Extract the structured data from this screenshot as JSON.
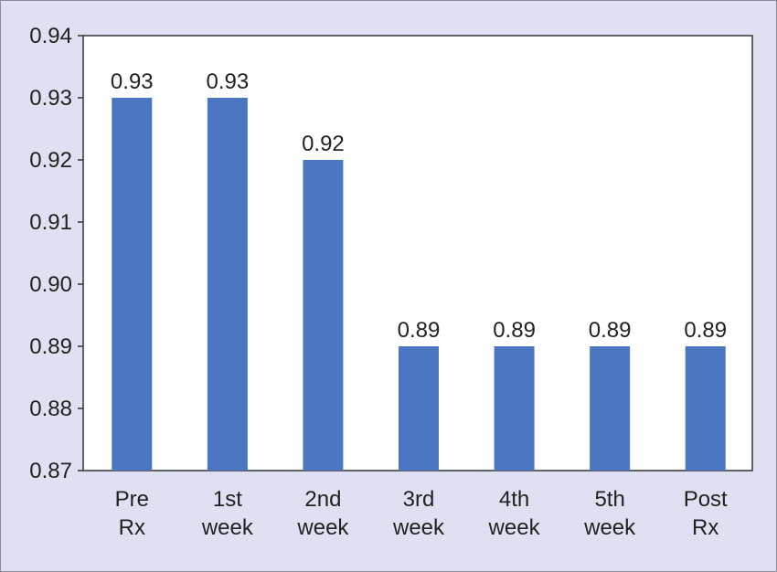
{
  "chart_data": {
    "type": "bar",
    "title": "",
    "xlabel": "",
    "ylabel": "",
    "ylim": [
      0.87,
      0.94
    ],
    "yticks": [
      "0.87",
      "0.88",
      "0.89",
      "0.90",
      "0.91",
      "0.92",
      "0.93",
      "0.94"
    ],
    "categories": [
      [
        "Pre",
        "Rx"
      ],
      [
        "1st",
        "week"
      ],
      [
        "2nd",
        "week"
      ],
      [
        "3rd",
        "week"
      ],
      [
        "4th",
        "week"
      ],
      [
        "5th",
        "week"
      ],
      [
        "Post",
        "Rx"
      ]
    ],
    "values": [
      0.93,
      0.93,
      0.92,
      0.89,
      0.89,
      0.89,
      0.89
    ],
    "data_labels": [
      "0.93",
      "0.93",
      "0.92",
      "0.89",
      "0.89",
      "0.89",
      "0.89"
    ],
    "grid": false,
    "legend": "none",
    "colors": {
      "bar": "#4a76c2",
      "plot_background": "#ffffff",
      "outer_background": "#dfe0f2",
      "axis": "#333333",
      "text": "#222222"
    }
  }
}
